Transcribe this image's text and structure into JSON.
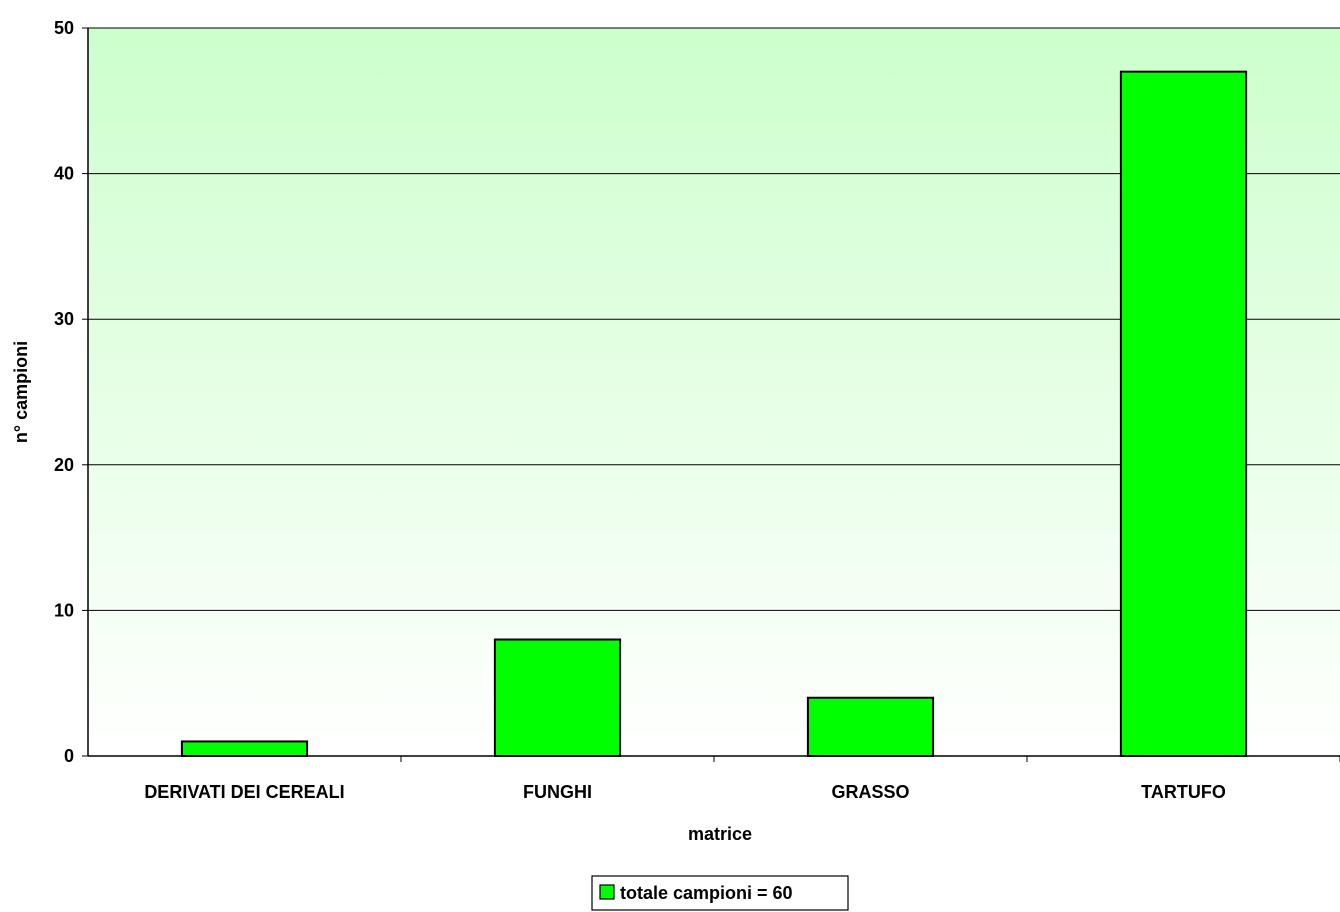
{
  "chart_data": {
    "type": "bar",
    "categories": [
      "DERIVATI DEI CEREALI",
      "FUNGHI",
      "GRASSO",
      "TARTUFO"
    ],
    "series": [
      {
        "name": "totale campioni = 60",
        "values": [
          1,
          8,
          4,
          47
        ]
      }
    ],
    "xlabel": "matrice",
    "ylabel": "n° campioni",
    "ylim": [
      0,
      50
    ],
    "yticks": [
      0,
      10,
      20,
      30,
      40,
      50
    ],
    "grid": true,
    "legend_position": "bottom",
    "colors": {
      "bar_fill": "#00ff00",
      "bar_stroke": "#000000",
      "plot_bg_top": "#ccffcc",
      "plot_bg_bottom": "#ffffff",
      "gridline": "#000000"
    }
  }
}
